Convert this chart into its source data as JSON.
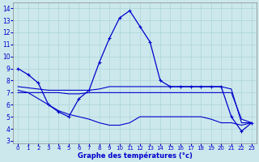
{
  "xlabel": "Graphe des températures (°c)",
  "xlim": [
    -0.5,
    23.5
  ],
  "ylim": [
    2.8,
    14.5
  ],
  "yticks": [
    3,
    4,
    5,
    6,
    7,
    8,
    9,
    10,
    11,
    12,
    13,
    14
  ],
  "xticks": [
    0,
    1,
    2,
    3,
    4,
    5,
    6,
    7,
    8,
    9,
    10,
    11,
    12,
    13,
    14,
    15,
    16,
    17,
    18,
    19,
    20,
    21,
    22,
    23
  ],
  "bg_color": "#cce8ec",
  "line_color": "#0000cc",
  "grid_color": "#b0d8dc",
  "series": [
    {
      "x": [
        0,
        1,
        2,
        3,
        4,
        5,
        6,
        7,
        8,
        9,
        10,
        11,
        12,
        13,
        14,
        15,
        16,
        17,
        18,
        19,
        20,
        21,
        22,
        23
      ],
      "y": [
        9.0,
        8.5,
        7.8,
        6.0,
        5.4,
        5.0,
        6.5,
        7.2,
        9.5,
        11.5,
        13.2,
        13.8,
        12.5,
        11.2,
        8.0,
        7.5,
        7.5,
        7.5,
        7.5,
        7.5,
        7.5,
        5.0,
        3.8,
        4.5
      ],
      "with_marker": true
    },
    {
      "x": [
        0,
        1,
        2,
        3,
        4,
        5,
        6,
        7,
        8,
        9,
        10,
        11,
        12,
        13,
        14,
        15,
        16,
        17,
        18,
        19,
        20,
        21,
        22,
        23
      ],
      "y": [
        7.5,
        7.4,
        7.3,
        7.2,
        7.2,
        7.2,
        7.2,
        7.2,
        7.3,
        7.5,
        7.5,
        7.5,
        7.5,
        7.5,
        7.5,
        7.5,
        7.5,
        7.5,
        7.5,
        7.5,
        7.5,
        7.3,
        4.5,
        4.5
      ],
      "with_marker": false
    },
    {
      "x": [
        0,
        1,
        2,
        3,
        4,
        5,
        6,
        7,
        8,
        9,
        10,
        11,
        12,
        13,
        14,
        15,
        16,
        17,
        18,
        19,
        20,
        21,
        22,
        23
      ],
      "y": [
        7.0,
        7.0,
        7.0,
        7.0,
        7.0,
        6.9,
        6.9,
        7.0,
        7.0,
        7.0,
        7.0,
        7.0,
        7.0,
        7.0,
        7.0,
        7.0,
        7.0,
        7.0,
        7.0,
        7.0,
        7.0,
        7.0,
        4.8,
        4.5
      ],
      "with_marker": false
    },
    {
      "x": [
        0,
        1,
        2,
        3,
        4,
        5,
        6,
        7,
        8,
        9,
        10,
        11,
        12,
        13,
        14,
        15,
        16,
        17,
        18,
        19,
        20,
        21,
        22,
        23
      ],
      "y": [
        7.2,
        7.0,
        6.5,
        6.0,
        5.5,
        5.2,
        5.0,
        4.8,
        4.5,
        4.3,
        4.3,
        4.5,
        5.0,
        5.0,
        5.0,
        5.0,
        5.0,
        5.0,
        5.0,
        4.8,
        4.5,
        4.5,
        4.3,
        4.5
      ],
      "with_marker": false
    }
  ]
}
